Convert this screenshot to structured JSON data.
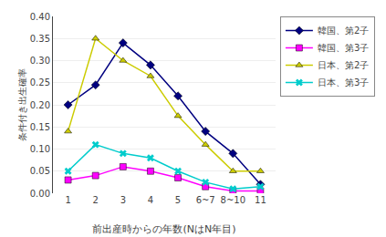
{
  "chart_data": {
    "type": "line",
    "categories": [
      "1",
      "2",
      "3",
      "4",
      "5",
      "6~7",
      "8~10",
      "11"
    ],
    "series": [
      {
        "name": "韓国、第2子",
        "color": "#000080",
        "marker": "diamond",
        "values": [
          0.2,
          0.245,
          0.34,
          0.29,
          0.22,
          0.14,
          0.09,
          0.02
        ]
      },
      {
        "name": "韓国、第3子",
        "color": "#ff00ff",
        "marker": "square",
        "values": [
          0.03,
          0.04,
          0.06,
          0.05,
          0.035,
          0.015,
          0.005,
          0.005
        ]
      },
      {
        "name": "日本、第2子",
        "color": "#cccc00",
        "marker": "triangle-up",
        "values": [
          0.14,
          0.35,
          0.3,
          0.265,
          0.175,
          0.11,
          0.05,
          0.05
        ]
      },
      {
        "name": "日本、第3子",
        "color": "#00cccc",
        "marker": "x",
        "values": [
          0.05,
          0.11,
          0.09,
          0.08,
          0.05,
          0.025,
          0.01,
          0.015
        ]
      }
    ],
    "y_label": "条件付き出生確率",
    "x_label": "前出産時からの年数(NはN年目)",
    "ylim": [
      0,
      0.4
    ],
    "yticks": [
      {
        "value": 0,
        "label": "0.00"
      },
      0.05,
      {
        "value": 0.1,
        "label": "0.10"
      },
      0.15,
      {
        "value": 0.2,
        "label": "0.20"
      },
      0.25,
      {
        "value": 0.3,
        "label": "0.30"
      },
      0.35,
      {
        "value": 0.4,
        "label": "0.40"
      }
    ],
    "grid": true,
    "legend": "right"
  }
}
